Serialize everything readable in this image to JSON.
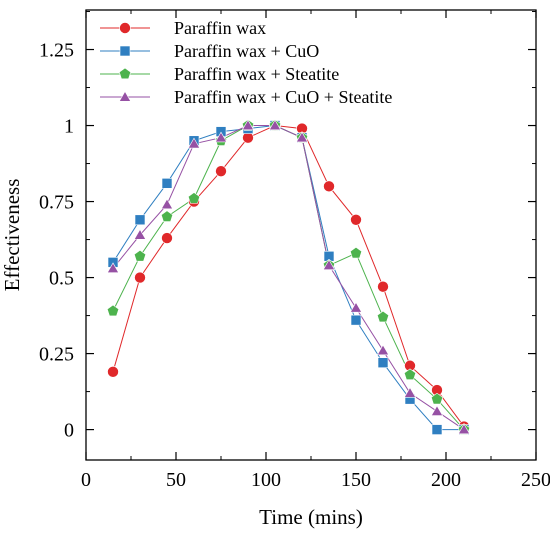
{
  "chart_data": {
    "type": "line",
    "title": "",
    "xlabel": "Time (mins)",
    "ylabel": "Effectiveness",
    "xlim": [
      0,
      250
    ],
    "ylim": [
      -0.1,
      1.38
    ],
    "xticks": [
      0,
      50,
      100,
      150,
      200,
      250
    ],
    "yticks": [
      0,
      0.25,
      0.5,
      0.75,
      1,
      1.25
    ],
    "xtick_labels": [
      "0",
      "50",
      "100",
      "150",
      "200",
      "250"
    ],
    "ytick_labels": [
      "0",
      "0.25",
      "0.5",
      "0.75",
      "1",
      "1.25"
    ],
    "grid": false,
    "legend_position": "top-left",
    "x": [
      15,
      30,
      45,
      60,
      75,
      90,
      105,
      120,
      135,
      150,
      165,
      180,
      195,
      210
    ],
    "series": [
      {
        "name": "Paraffin wax",
        "color": "#e0282a",
        "marker": "circle",
        "values": [
          0.19,
          0.5,
          0.63,
          0.75,
          0.85,
          0.96,
          1.0,
          0.99,
          0.8,
          0.69,
          0.47,
          0.21,
          0.13,
          0.01
        ]
      },
      {
        "name": "Paraffin wax + CuO",
        "color": "#2f7fc1",
        "marker": "square",
        "values": [
          0.55,
          0.69,
          0.81,
          0.95,
          0.98,
          0.99,
          1.0,
          0.96,
          0.57,
          0.36,
          0.22,
          0.1,
          0.0,
          0.0
        ]
      },
      {
        "name": "Paraffin wax + Steatite",
        "color": "#4db34d",
        "marker": "pentagon",
        "values": [
          0.39,
          0.57,
          0.7,
          0.76,
          0.95,
          1.0,
          1.0,
          0.96,
          0.54,
          0.58,
          0.37,
          0.18,
          0.1,
          0.0
        ]
      },
      {
        "name": "Paraffin wax + CuO + Steatite",
        "color": "#9651a4",
        "marker": "triangle",
        "values": [
          0.53,
          0.64,
          0.74,
          0.94,
          0.96,
          1.0,
          1.0,
          0.96,
          0.54,
          0.4,
          0.26,
          0.12,
          0.06,
          0.0
        ]
      }
    ]
  }
}
